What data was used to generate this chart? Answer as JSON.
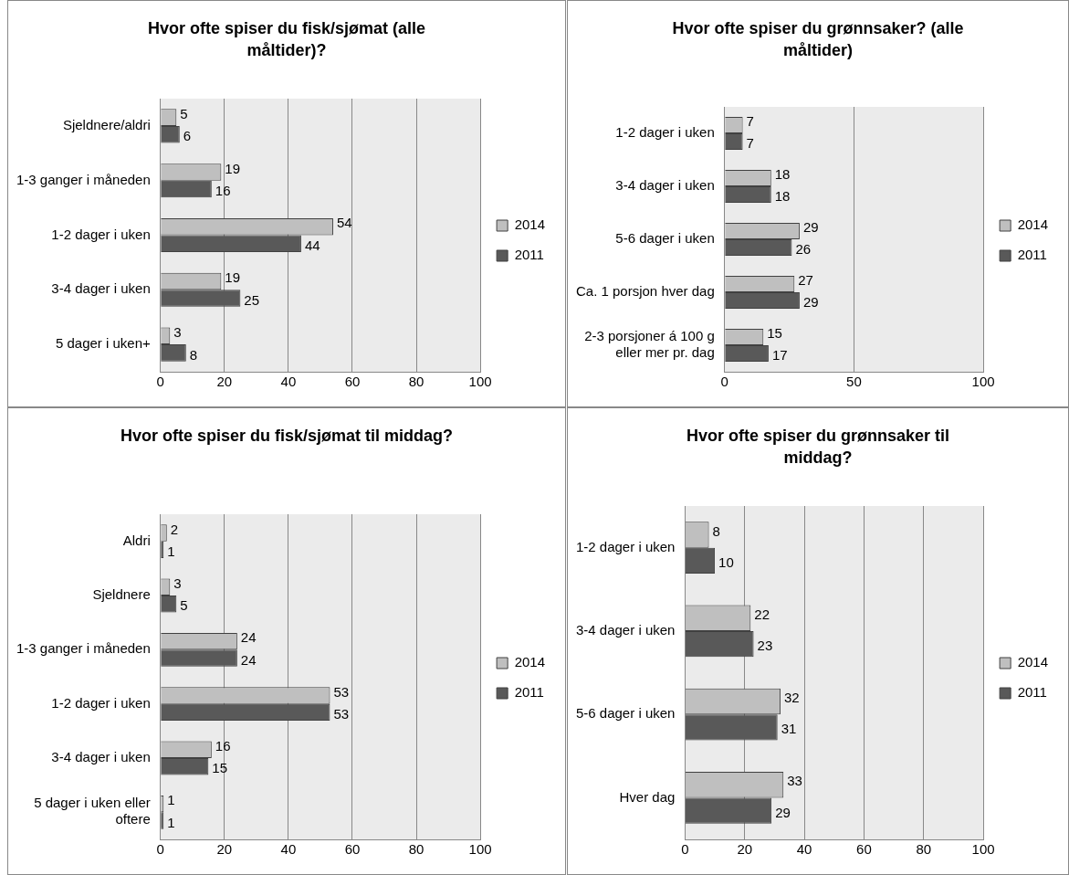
{
  "chart_data": [
    {
      "type": "bar",
      "orientation": "horizontal",
      "title": "Hvor ofte spiser du fisk/sjømat (alle måltider)?",
      "categories": [
        "Sjeldnere/aldri",
        "1-3 ganger i måneden",
        "1-2 dager i uken",
        "3-4 dager i uken",
        "5 dager i uken+"
      ],
      "series": [
        {
          "name": "2014",
          "color": "#bfbfbf",
          "values": [
            5,
            19,
            54,
            19,
            3
          ]
        },
        {
          "name": "2011",
          "color": "#595959",
          "values": [
            6,
            16,
            44,
            25,
            8
          ]
        }
      ],
      "xlim": [
        0,
        100
      ],
      "xticks": [
        0,
        20,
        40,
        60,
        80,
        100
      ],
      "grid": "x",
      "legend": "right",
      "data_labels": true
    },
    {
      "type": "bar",
      "orientation": "horizontal",
      "title": "Hvor ofte spiser du grønnsaker? (alle måltider)",
      "categories": [
        "1-2 dager i uken",
        "3-4 dager i uken",
        "5-6 dager i uken",
        "Ca. 1 porsjon hver dag",
        "2-3 porsjoner á 100 g eller mer pr. dag"
      ],
      "series": [
        {
          "name": "2014",
          "color": "#bfbfbf",
          "values": [
            7,
            18,
            29,
            27,
            15
          ]
        },
        {
          "name": "2011",
          "color": "#595959",
          "values": [
            7,
            18,
            26,
            29,
            17
          ]
        }
      ],
      "xlim": [
        0,
        100
      ],
      "xticks": [
        0,
        50,
        100
      ],
      "grid": "x",
      "legend": "right",
      "data_labels": true
    },
    {
      "type": "bar",
      "orientation": "horizontal",
      "title": "Hvor ofte spiser du fisk/sjømat til middag?",
      "categories": [
        "Aldri",
        "Sjeldnere",
        "1-3 ganger i måneden",
        "1-2 dager i uken",
        "3-4 dager i uken",
        "5 dager i uken eller oftere"
      ],
      "series": [
        {
          "name": "2014",
          "color": "#bfbfbf",
          "values": [
            2,
            3,
            24,
            53,
            16,
            1
          ]
        },
        {
          "name": "2011",
          "color": "#595959",
          "values": [
            1,
            5,
            24,
            53,
            15,
            1
          ]
        }
      ],
      "xlim": [
        0,
        100
      ],
      "xticks": [
        0,
        20,
        40,
        60,
        80,
        100
      ],
      "grid": "x",
      "legend": "right",
      "data_labels": true
    },
    {
      "type": "bar",
      "orientation": "horizontal",
      "title": "Hvor ofte spiser du grønnsaker til middag?",
      "categories": [
        "1-2 dager i uken",
        "3-4 dager i uken",
        "5-6 dager i uken",
        "Hver dag"
      ],
      "series": [
        {
          "name": "2014",
          "color": "#bfbfbf",
          "values": [
            8,
            22,
            32,
            33
          ]
        },
        {
          "name": "2011",
          "color": "#595959",
          "values": [
            10,
            23,
            31,
            29
          ]
        }
      ],
      "xlim": [
        0,
        100
      ],
      "xticks": [
        0,
        20,
        40,
        60,
        80,
        100
      ],
      "grid": "x",
      "legend": "right",
      "data_labels": true
    }
  ]
}
